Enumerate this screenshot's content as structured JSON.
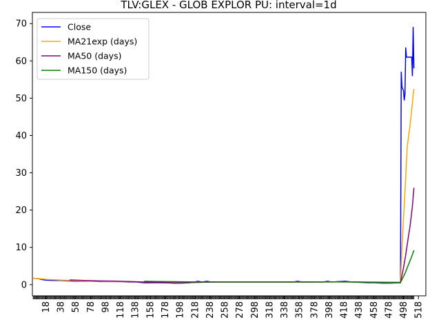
{
  "chart_data": {
    "type": "line",
    "title": "TLV:GLEX - GLOB EXPLOR PU: interval=1d",
    "xlabel": "",
    "ylabel": "",
    "xlim": [
      0,
      528
    ],
    "ylim": [
      -3,
      73
    ],
    "x_ticks": [
      18,
      38,
      58,
      78,
      98,
      118,
      138,
      158,
      178,
      198,
      218,
      238,
      258,
      278,
      298,
      318,
      338,
      358,
      378,
      398,
      418,
      438,
      458,
      478,
      498,
      518
    ],
    "y_ticks": [
      0,
      10,
      20,
      30,
      40,
      50,
      60,
      70
    ],
    "grid": false,
    "legend_position": "top-left",
    "series": [
      {
        "name": "Close",
        "color": "#0000ff",
        "points": [
          [
            1,
            1.7
          ],
          [
            8,
            1.6
          ],
          [
            12,
            1.4
          ],
          [
            18,
            1.2
          ],
          [
            28,
            1.1
          ],
          [
            38,
            1.1
          ],
          [
            48,
            1.0
          ],
          [
            58,
            0.9
          ],
          [
            70,
            0.9
          ],
          [
            80,
            0.9
          ],
          [
            90,
            0.8
          ],
          [
            100,
            0.8
          ],
          [
            110,
            0.8
          ],
          [
            120,
            0.8
          ],
          [
            130,
            0.7
          ],
          [
            140,
            0.7
          ],
          [
            150,
            0.5
          ],
          [
            160,
            0.5
          ],
          [
            170,
            0.5
          ],
          [
            180,
            0.5
          ],
          [
            190,
            0.4
          ],
          [
            200,
            0.4
          ],
          [
            210,
            0.5
          ],
          [
            216,
            0.6
          ],
          [
            222,
            0.9
          ],
          [
            228,
            0.7
          ],
          [
            234,
            0.9
          ],
          [
            240,
            0.7
          ],
          [
            250,
            0.7
          ],
          [
            260,
            0.7
          ],
          [
            270,
            0.7
          ],
          [
            280,
            0.7
          ],
          [
            290,
            0.7
          ],
          [
            300,
            0.7
          ],
          [
            310,
            0.7
          ],
          [
            320,
            0.7
          ],
          [
            330,
            0.7
          ],
          [
            340,
            0.7
          ],
          [
            350,
            0.7
          ],
          [
            356,
            0.9
          ],
          [
            362,
            0.7
          ],
          [
            370,
            0.7
          ],
          [
            380,
            0.7
          ],
          [
            390,
            0.7
          ],
          [
            396,
            0.9
          ],
          [
            402,
            0.7
          ],
          [
            410,
            0.8
          ],
          [
            420,
            0.9
          ],
          [
            430,
            0.7
          ],
          [
            440,
            0.6
          ],
          [
            450,
            0.5
          ],
          [
            460,
            0.5
          ],
          [
            470,
            0.4
          ],
          [
            480,
            0.4
          ],
          [
            490,
            0.5
          ],
          [
            494,
            0.6
          ],
          [
            495,
            57
          ],
          [
            496,
            53
          ],
          [
            498,
            52
          ],
          [
            499,
            49.5
          ],
          [
            500,
            51
          ],
          [
            501,
            63.5
          ],
          [
            502,
            61
          ],
          [
            504,
            61
          ],
          [
            507,
            61
          ],
          [
            509,
            61
          ],
          [
            510,
            56
          ],
          [
            511,
            69
          ],
          [
            512,
            58
          ]
        ]
      },
      {
        "name": "MA21exp (days)",
        "color": "#ffa500",
        "points": [
          [
            1,
            1.7
          ],
          [
            10,
            1.6
          ],
          [
            20,
            1.4
          ],
          [
            30,
            1.3
          ],
          [
            40,
            1.2
          ],
          [
            50,
            1.1
          ],
          [
            60,
            1.0
          ],
          [
            80,
            0.9
          ],
          [
            100,
            0.85
          ],
          [
            120,
            0.8
          ],
          [
            140,
            0.75
          ],
          [
            160,
            0.6
          ],
          [
            180,
            0.55
          ],
          [
            200,
            0.5
          ],
          [
            220,
            0.6
          ],
          [
            240,
            0.7
          ],
          [
            260,
            0.7
          ],
          [
            300,
            0.7
          ],
          [
            340,
            0.7
          ],
          [
            380,
            0.7
          ],
          [
            420,
            0.75
          ],
          [
            440,
            0.65
          ],
          [
            460,
            0.55
          ],
          [
            480,
            0.5
          ],
          [
            494,
            0.55
          ],
          [
            495,
            5.7
          ],
          [
            496,
            10
          ],
          [
            497,
            14
          ],
          [
            498,
            18
          ],
          [
            499,
            21
          ],
          [
            500,
            25
          ],
          [
            501,
            29
          ],
          [
            502,
            33
          ],
          [
            503,
            37
          ],
          [
            505,
            40
          ],
          [
            507,
            43
          ],
          [
            508,
            45
          ],
          [
            509,
            47
          ],
          [
            510,
            48.5
          ],
          [
            511,
            51
          ],
          [
            512,
            52.5
          ]
        ]
      },
      {
        "name": "MA50 (days)",
        "color": "#800080",
        "points": [
          [
            50,
            1.25
          ],
          [
            70,
            1.1
          ],
          [
            90,
            1.0
          ],
          [
            110,
            0.95
          ],
          [
            130,
            0.85
          ],
          [
            150,
            0.7
          ],
          [
            170,
            0.6
          ],
          [
            190,
            0.5
          ],
          [
            210,
            0.55
          ],
          [
            230,
            0.65
          ],
          [
            250,
            0.7
          ],
          [
            290,
            0.7
          ],
          [
            330,
            0.7
          ],
          [
            370,
            0.7
          ],
          [
            410,
            0.75
          ],
          [
            440,
            0.7
          ],
          [
            470,
            0.55
          ],
          [
            494,
            0.5
          ],
          [
            495,
            1.6
          ],
          [
            498,
            4.5
          ],
          [
            501,
            8
          ],
          [
            504,
            12
          ],
          [
            507,
            16
          ],
          [
            510,
            21
          ],
          [
            512,
            26
          ]
        ]
      },
      {
        "name": "MA150 (days)",
        "color": "#008000",
        "points": [
          [
            150,
            0.9
          ],
          [
            180,
            0.8
          ],
          [
            210,
            0.75
          ],
          [
            240,
            0.75
          ],
          [
            280,
            0.75
          ],
          [
            320,
            0.75
          ],
          [
            360,
            0.75
          ],
          [
            400,
            0.75
          ],
          [
            440,
            0.7
          ],
          [
            470,
            0.65
          ],
          [
            494,
            0.6
          ],
          [
            495,
            0.95
          ],
          [
            500,
            3
          ],
          [
            504,
            5
          ],
          [
            508,
            7
          ],
          [
            512,
            9.2
          ]
        ]
      }
    ]
  }
}
